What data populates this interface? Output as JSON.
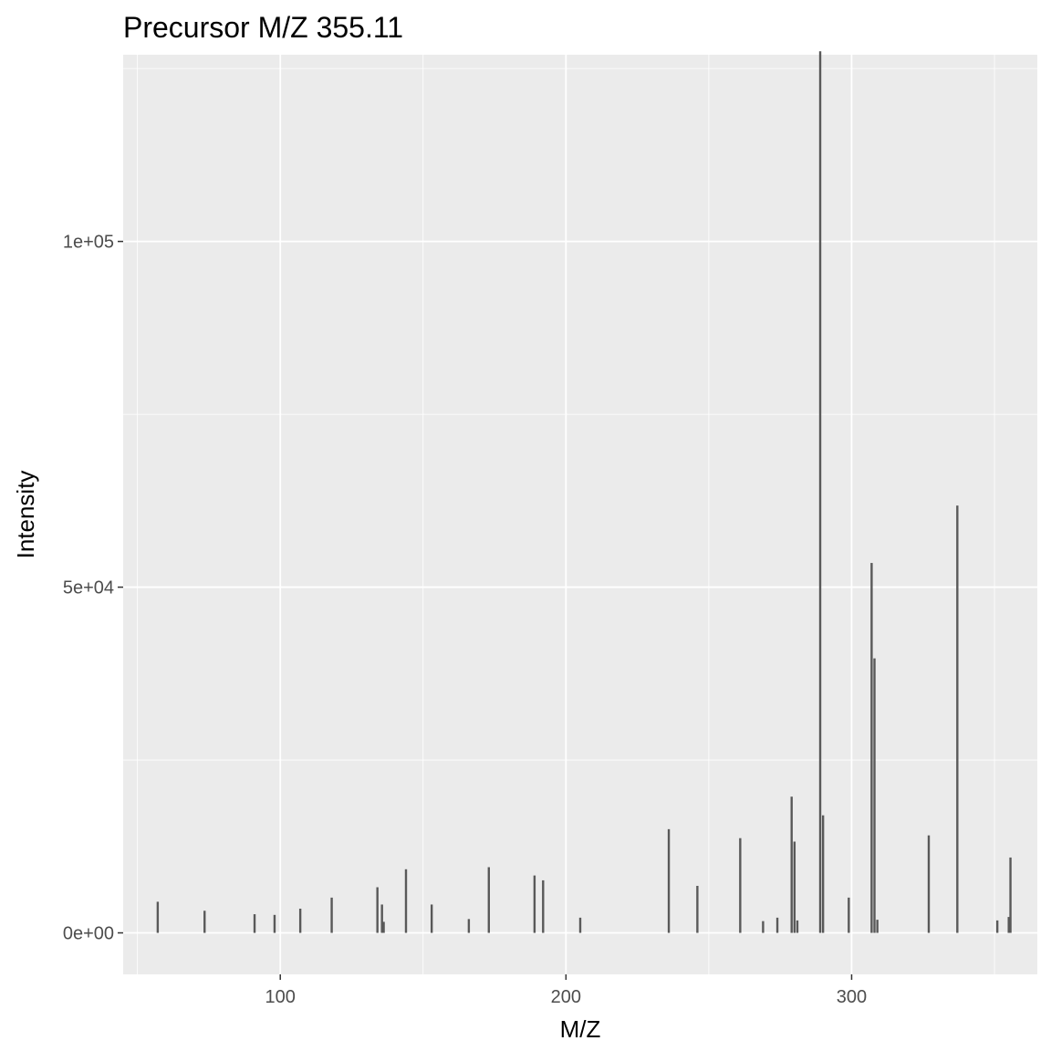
{
  "chart_data": {
    "type": "bar",
    "title": "Precursor M/Z 355.11",
    "xlabel": "M/Z",
    "ylabel": "Intensity",
    "xlim": [
      45,
      365
    ],
    "ylim": [
      -6000,
      127000
    ],
    "x_ticks": [
      100,
      200,
      300
    ],
    "x_minor_ticks": [
      50,
      150,
      250,
      350
    ],
    "y_ticks": [
      0,
      50000,
      100000
    ],
    "y_tick_labels": [
      "0e+00",
      "5e+04",
      "1e+05"
    ],
    "y_minor_ticks": [
      25000,
      75000,
      125000
    ],
    "grid": true,
    "colors": {
      "panel": "#ebebeb",
      "grid": "#ffffff",
      "bar": "#595959",
      "tick": "#333333"
    },
    "peaks": [
      {
        "mz": 57.1,
        "intensity": 4500
      },
      {
        "mz": 73.5,
        "intensity": 3200
      },
      {
        "mz": 91.0,
        "intensity": 2700
      },
      {
        "mz": 98.0,
        "intensity": 2600
      },
      {
        "mz": 107.0,
        "intensity": 3500
      },
      {
        "mz": 118.0,
        "intensity": 5100
      },
      {
        "mz": 134.0,
        "intensity": 6600
      },
      {
        "mz": 135.6,
        "intensity": 4100
      },
      {
        "mz": 136.2,
        "intensity": 1600
      },
      {
        "mz": 144.0,
        "intensity": 9200
      },
      {
        "mz": 153.0,
        "intensity": 4100
      },
      {
        "mz": 166.0,
        "intensity": 2000
      },
      {
        "mz": 173.0,
        "intensity": 9500
      },
      {
        "mz": 189.0,
        "intensity": 8300
      },
      {
        "mz": 192.0,
        "intensity": 7600
      },
      {
        "mz": 205.0,
        "intensity": 2200
      },
      {
        "mz": 236.0,
        "intensity": 15000
      },
      {
        "mz": 246.0,
        "intensity": 6800
      },
      {
        "mz": 261.0,
        "intensity": 13700
      },
      {
        "mz": 269.0,
        "intensity": 1700
      },
      {
        "mz": 274.0,
        "intensity": 2200
      },
      {
        "mz": 279.0,
        "intensity": 19700
      },
      {
        "mz": 280.0,
        "intensity": 13200
      },
      {
        "mz": 281.0,
        "intensity": 1800
      },
      {
        "mz": 289.0,
        "intensity": 127500
      },
      {
        "mz": 290.0,
        "intensity": 17000
      },
      {
        "mz": 299.0,
        "intensity": 5100
      },
      {
        "mz": 307.0,
        "intensity": 53500
      },
      {
        "mz": 308.0,
        "intensity": 39700
      },
      {
        "mz": 309.0,
        "intensity": 1900
      },
      {
        "mz": 327.0,
        "intensity": 14100
      },
      {
        "mz": 337.0,
        "intensity": 61800
      },
      {
        "mz": 351.0,
        "intensity": 1800
      },
      {
        "mz": 355.0,
        "intensity": 2300
      },
      {
        "mz": 355.6,
        "intensity": 10900
      }
    ]
  }
}
